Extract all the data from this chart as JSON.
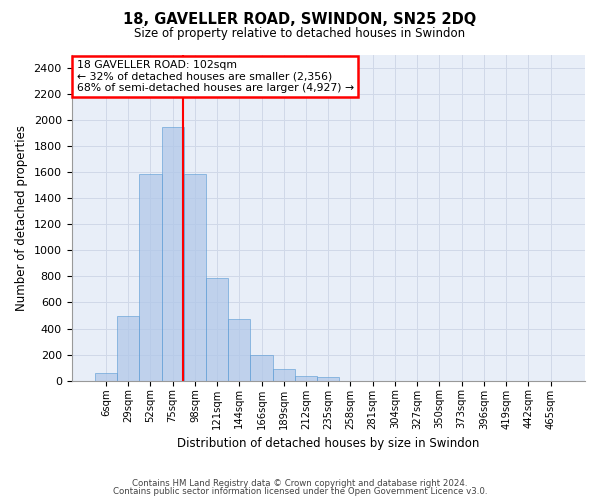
{
  "title": "18, GAVELLER ROAD, SWINDON, SN25 2DQ",
  "subtitle": "Size of property relative to detached houses in Swindon",
  "xlabel": "Distribution of detached houses by size in Swindon",
  "ylabel": "Number of detached properties",
  "footer1": "Contains HM Land Registry data © Crown copyright and database right 2024.",
  "footer2": "Contains public sector information licensed under the Open Government Licence v3.0.",
  "categories": [
    "6sqm",
    "29sqm",
    "52sqm",
    "75sqm",
    "98sqm",
    "121sqm",
    "144sqm",
    "166sqm",
    "189sqm",
    "212sqm",
    "235sqm",
    "258sqm",
    "281sqm",
    "304sqm",
    "327sqm",
    "350sqm",
    "373sqm",
    "396sqm",
    "419sqm",
    "442sqm",
    "465sqm"
  ],
  "bar_heights": [
    60,
    500,
    1590,
    1950,
    1590,
    790,
    470,
    200,
    90,
    35,
    25,
    0,
    0,
    0,
    0,
    0,
    0,
    0,
    0,
    0,
    0
  ],
  "bar_color": "#aec6e8",
  "bar_edge_color": "#5b9bd5",
  "bar_alpha": 0.7,
  "grid_color": "#d0d8e8",
  "background_color": "#e8eef8",
  "annotation_text": "18 GAVELLER ROAD: 102sqm\n← 32% of detached houses are smaller (2,356)\n68% of semi-detached houses are larger (4,927) →",
  "annotation_box_color": "white",
  "annotation_box_edge_color": "red",
  "vline_x_index": 3.45,
  "vline_color": "red",
  "ylim": [
    0,
    2500
  ],
  "yticks": [
    0,
    200,
    400,
    600,
    800,
    1000,
    1200,
    1400,
    1600,
    1800,
    2000,
    2200,
    2400
  ]
}
